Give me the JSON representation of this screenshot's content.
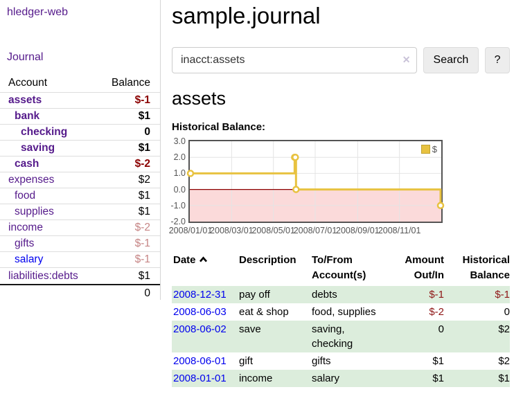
{
  "app": {
    "brand": "hledger-web",
    "nav_journal": "Journal"
  },
  "sidebar": {
    "col_account": "Account",
    "col_balance": "Balance",
    "accounts": [
      {
        "name": "assets",
        "balance": "$-1",
        "level": 1,
        "bold": true,
        "balance_class": "neg"
      },
      {
        "name": "bank",
        "balance": "$1",
        "level": 2,
        "bold": true,
        "balance_class": ""
      },
      {
        "name": "checking",
        "balance": "0",
        "level": 3,
        "bold": true,
        "balance_class": ""
      },
      {
        "name": "saving",
        "balance": "$1",
        "level": 3,
        "bold": true,
        "balance_class": ""
      },
      {
        "name": "cash",
        "balance": "$-2",
        "level": 2,
        "bold": true,
        "balance_class": "neg"
      },
      {
        "name": "expenses",
        "balance": "$2",
        "level": 1,
        "bold": false,
        "balance_class": ""
      },
      {
        "name": "food",
        "balance": "$1",
        "level": 2,
        "bold": false,
        "balance_class": ""
      },
      {
        "name": "supplies",
        "balance": "$1",
        "level": 2,
        "bold": false,
        "balance_class": ""
      },
      {
        "name": "income",
        "balance": "$-2",
        "level": 1,
        "bold": false,
        "balance_class": "rose"
      },
      {
        "name": "gifts",
        "balance": "$-1",
        "level": 2,
        "bold": false,
        "balance_class": "rose"
      },
      {
        "name": "salary",
        "balance": "$-1",
        "level": 2,
        "bold": false,
        "balance_class": "rose",
        "link_color": "blue"
      },
      {
        "name": "liabilities:debts",
        "balance": "$1",
        "level": 1,
        "bold": false,
        "balance_class": ""
      }
    ],
    "total": "0"
  },
  "main": {
    "title": "sample.journal",
    "search": {
      "value": "inacct:assets",
      "clear_glyph": "✕",
      "button_label": "Search",
      "help_label": "?"
    },
    "account_heading": "assets",
    "section_heading": "Historical Balance:"
  },
  "chart_data": {
    "type": "line",
    "step": true,
    "title": "Historical Balance:",
    "series": [
      {
        "name": "$",
        "color": "#E8C240",
        "points": [
          [
            "2008-01-01",
            1
          ],
          [
            "2008-06-01",
            2
          ],
          [
            "2008-06-02",
            2
          ],
          [
            "2008-06-03",
            0
          ],
          [
            "2008-12-31",
            -1
          ]
        ]
      }
    ],
    "x_range": [
      "2008-01-01",
      "2008-12-31"
    ],
    "x_ticks": [
      "2008/01/01",
      "2008/03/01",
      "2008/05/01",
      "2008/07/01",
      "2008/09/01",
      "2008/11/01"
    ],
    "y_ticks": [
      "3.0",
      "2.0",
      "1.0",
      "0.0",
      "-1.0",
      "-2.0"
    ],
    "ylim": [
      -2,
      3
    ],
    "grid": true,
    "legend_position": "top-right",
    "negative_fill": "#FBDADA",
    "zero_line_color": "#8B0000",
    "grid_color": "#E4E4E4",
    "axis_color": "#545454"
  },
  "register": {
    "headers": {
      "date": "Date",
      "description": "Description",
      "accounts": "To/From Account(s)",
      "amount": "Amount Out/In",
      "balance": "Historical Balance"
    },
    "sort_indicator": "ascending",
    "rows": [
      {
        "date": "2008-12-31",
        "description": "pay off",
        "accounts": "debts",
        "amount": "$-1",
        "amount_neg": true,
        "balance": "$-1",
        "balance_neg": true
      },
      {
        "date": "2008-06-03",
        "description": "eat & shop",
        "accounts": "food, supplies",
        "amount": "$-2",
        "amount_neg": true,
        "balance": "0",
        "balance_neg": false
      },
      {
        "date": "2008-06-02",
        "description": "save",
        "accounts": "saving, checking",
        "amount": "0",
        "amount_neg": false,
        "balance": "$2",
        "balance_neg": false
      },
      {
        "date": "2008-06-01",
        "description": "gift",
        "accounts": "gifts",
        "amount": "$1",
        "amount_neg": false,
        "balance": "$2",
        "balance_neg": false
      },
      {
        "date": "2008-01-01",
        "description": "income",
        "accounts": "salary",
        "amount": "$1",
        "amount_neg": false,
        "balance": "$1",
        "balance_neg": false
      }
    ]
  }
}
